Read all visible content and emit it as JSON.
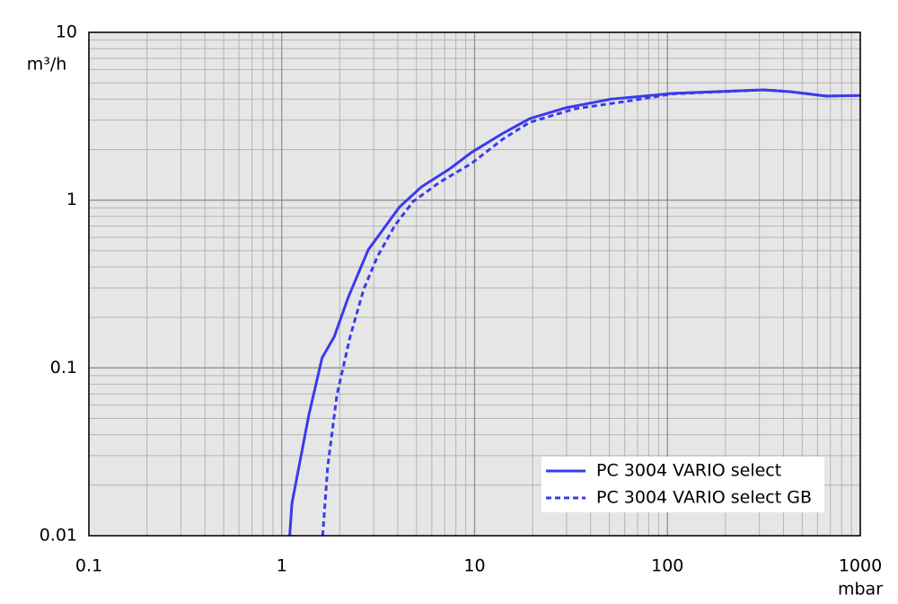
{
  "chart_data": {
    "type": "line",
    "x_label": "mbar",
    "y_label": "m³/h",
    "xscale": "log",
    "yscale": "log",
    "grid": true,
    "legend_position": "lower right",
    "xlim": [
      0.1,
      1000
    ],
    "ylim": [
      0.01,
      10
    ],
    "xticks": [
      0.1,
      1,
      10,
      100,
      1000
    ],
    "yticks": [
      0.01,
      0.1,
      1,
      10
    ],
    "series": [
      {
        "name": "PC 3004 VARIO select",
        "color": "#3a3aef",
        "dash": "solid",
        "x": [
          1.1,
          1.13,
          1.38,
          1.62,
          1.87,
          2.22,
          2.81,
          4.08,
          5.3,
          7.4,
          9.6,
          14,
          19.3,
          29.7,
          50.8,
          107,
          314,
          433,
          665,
          1000
        ],
        "values": [
          0.01,
          0.0156,
          0.052,
          0.115,
          0.153,
          0.266,
          0.506,
          0.91,
          1.2,
          1.53,
          1.92,
          2.5,
          3.06,
          3.55,
          4.0,
          4.33,
          4.54,
          4.43,
          4.17,
          4.2
        ]
      },
      {
        "name": "PC 3004 VARIO select GB",
        "color": "#3a3aef",
        "dash": "dashed",
        "x": [
          1.63,
          1.73,
          1.93,
          2.26,
          2.66,
          3.13,
          3.87,
          4.8,
          6.6,
          9.6,
          14,
          19.3,
          33,
          63,
          107,
          314,
          433,
          665,
          1000
        ],
        "values": [
          0.01,
          0.0257,
          0.0686,
          0.153,
          0.294,
          0.46,
          0.71,
          0.98,
          1.28,
          1.65,
          2.31,
          2.91,
          3.5,
          3.9,
          4.3,
          4.54,
          4.43,
          4.17,
          4.2
        ]
      }
    ]
  }
}
